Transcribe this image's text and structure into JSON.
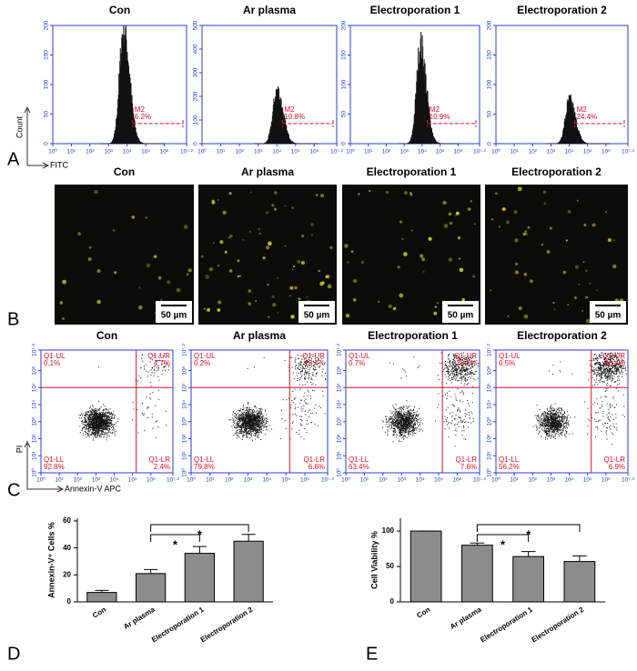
{
  "panel_labels": {
    "a": "A",
    "b": "B",
    "c": "C",
    "d": "D",
    "e": "E"
  },
  "histograms": {
    "type": "histogram",
    "x_label": "FITC",
    "y_label": "Count",
    "xlim": [
      0,
      7.2
    ],
    "xticks": [
      {
        "value": 0,
        "label": "10⁰"
      },
      {
        "value": 1,
        "label": "10¹"
      },
      {
        "value": 2,
        "label": "10²"
      },
      {
        "value": 3,
        "label": "10³"
      },
      {
        "value": 4,
        "label": "10⁴"
      },
      {
        "value": 5,
        "label": "10⁵"
      },
      {
        "value": 6,
        "label": "10⁶"
      },
      {
        "value": 7.2,
        "label": "10⁷·²"
      }
    ],
    "panels": [
      {
        "title": "Con",
        "ylim": [
          0,
          200
        ],
        "yticks": [
          0,
          50,
          100,
          150,
          200
        ],
        "peak_position": 3.8,
        "peak_height": 200,
        "gate": {
          "name": "M2",
          "value": 6.2,
          "label": "6.2%"
        }
      },
      {
        "title": "Ar plasma",
        "ylim": [
          0,
          500
        ],
        "yticks": [
          0,
          100,
          200,
          300,
          400,
          500
        ],
        "peak_position": 4.0,
        "peak_height": 230,
        "gate": {
          "name": "M2",
          "value": 10.8,
          "label": "10.8%"
        }
      },
      {
        "title": "Electroporation 1",
        "ylim": [
          0,
          200
        ],
        "yticks": [
          0,
          50,
          100,
          150,
          200
        ],
        "peak_position": 3.9,
        "peak_height": 170,
        "gate": {
          "name": "M2",
          "value": 10.9,
          "label": "10.9%"
        }
      },
      {
        "title": "Electroporation 2",
        "ylim": [
          0,
          200
        ],
        "yticks": [
          0,
          50,
          100,
          150,
          200
        ],
        "peak_position": 4.0,
        "peak_height": 75,
        "gate": {
          "name": "M2",
          "value": 24.4,
          "label": "24.4%"
        }
      }
    ]
  },
  "microscopy": {
    "titles": [
      "Con",
      "Ar plasma",
      "Electroporation 1",
      "Electroporation 2"
    ],
    "scale_bar": "50 µm"
  },
  "flow": {
    "type": "scatter",
    "x_label": "Annexin-V APC",
    "y_label": "PI",
    "xlim": [
      0,
      7.2
    ],
    "ylim": [
      0,
      7.2
    ],
    "ticks": [
      {
        "value": 0,
        "label": "10⁰"
      },
      {
        "value": 1,
        "label": "10¹"
      },
      {
        "value": 2,
        "label": "10²"
      },
      {
        "value": 3,
        "label": "10³"
      },
      {
        "value": 4,
        "label": "10⁴"
      },
      {
        "value": 5,
        "label": "10⁵"
      },
      {
        "value": 6,
        "label": "10⁶"
      },
      {
        "value": 7.2,
        "label": "10⁷·²"
      }
    ],
    "panels": [
      {
        "title": "Con",
        "quadrants": [
          {
            "name": "Q1-UL",
            "value": 0.1,
            "label": "0.1%"
          },
          {
            "name": "Q1-UR",
            "value": 4.7,
            "label": "4.7%"
          },
          {
            "name": "Q1-LL",
            "value": 92.8,
            "label": "92.8%"
          },
          {
            "name": "Q1-LR",
            "value": 2.4,
            "label": "2.4%"
          }
        ]
      },
      {
        "title": "Ar plasma",
        "quadrants": [
          {
            "name": "Q1-UL",
            "value": 0.2,
            "label": "0.2%"
          },
          {
            "name": "Q1-UR",
            "value": 13.4,
            "label": "13.4%"
          },
          {
            "name": "Q1-LL",
            "value": 79.8,
            "label": "79.8%"
          },
          {
            "name": "Q1-LR",
            "value": 6.6,
            "label": "6.6%"
          }
        ]
      },
      {
        "title": "Electroporation 1",
        "quadrants": [
          {
            "name": "Q1-UL",
            "value": 0.7,
            "label": "0.7%"
          },
          {
            "name": "Q1-UR",
            "value": 28.2,
            "label": "28.2%"
          },
          {
            "name": "Q1-LL",
            "value": 63.4,
            "label": "63.4%"
          },
          {
            "name": "Q1-LR",
            "value": 7.6,
            "label": "7.6%"
          }
        ]
      },
      {
        "title": "Electroporation 2",
        "quadrants": [
          {
            "name": "Q1-UL",
            "value": 0.5,
            "label": "0.5%"
          },
          {
            "name": "Q1-UR",
            "value": 36.4,
            "label": "36.4%"
          },
          {
            "name": "Q1-LL",
            "value": 56.2,
            "label": "56.2%"
          },
          {
            "name": "Q1-LR",
            "value": 6.9,
            "label": "6.9%"
          }
        ]
      }
    ]
  },
  "chart_data": [
    {
      "type": "bar",
      "y_label": "Annexin-V⁺ Cells %",
      "categories": [
        "Con",
        "Ar plasma",
        "Electroporation 1",
        "Electroporation 2"
      ],
      "values": [
        7,
        21,
        36,
        45
      ],
      "errors": [
        1.5,
        3,
        5,
        5
      ],
      "color": "#8c8c8c",
      "ylim": [
        0,
        62
      ],
      "yticks": [
        0,
        20,
        40,
        60
      ],
      "significance": [
        "*",
        "*"
      ]
    },
    {
      "type": "bar",
      "y_label": "Cell Viability %",
      "categories": [
        "Con",
        "Ar plasma",
        "Electroporation 1",
        "Electroporation 2"
      ],
      "values": [
        100,
        80,
        64,
        57
      ],
      "errors": [
        0,
        3,
        7,
        8
      ],
      "color": "#8c8c8c",
      "ylim": [
        0,
        118
      ],
      "yticks": [
        0,
        50,
        100
      ],
      "significance": [
        "*",
        "*"
      ]
    }
  ]
}
